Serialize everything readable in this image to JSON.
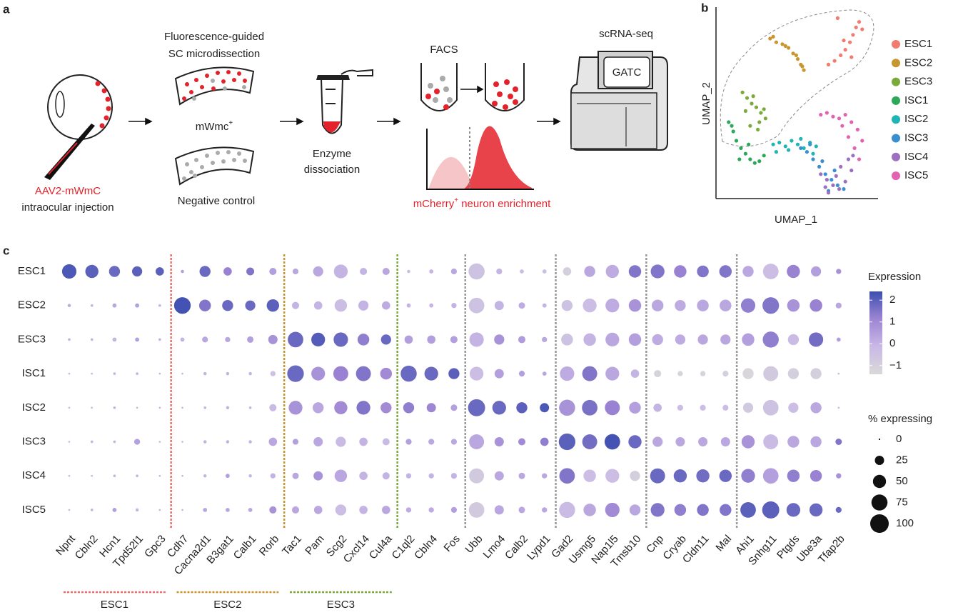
{
  "panel_labels": [
    "a",
    "b",
    "c"
  ],
  "diagram": {
    "injection": {
      "vector": "AAV2-mWmC",
      "route": "intraocular injection"
    },
    "microdissection": [
      "Fluorescence-guided",
      "SC microdissection"
    ],
    "sc_positive": {
      "label": "mWmc",
      "sup": "+"
    },
    "negative": "Negative control",
    "enzyme": [
      "Enzyme",
      "dissociation"
    ],
    "facs": "FACS",
    "enrichment": {
      "pre": "mCherry",
      "sup": "+",
      "post": " neuron enrichment"
    },
    "sequencing": "scRNA-seq",
    "machine": "GATC"
  },
  "chart_data": [
    {
      "type": "scatter",
      "xlabel": "UMAP_1",
      "ylabel": "UMAP_2",
      "xlim": [
        0,
        10
      ],
      "ylim": [
        0,
        10
      ],
      "legend": "right",
      "series": [
        {
          "name": "ESC1",
          "color": "#f07b6e",
          "x": [
            7.0,
            7.4,
            7.8,
            8.1,
            8.4,
            8.6,
            8.8,
            9.0,
            9.2,
            8.5,
            8.0,
            7.6
          ],
          "values": [
            7.1,
            7.3,
            7.6,
            7.9,
            8.3,
            8.7,
            9.1,
            9.4,
            9.0,
            7.5,
            8.4,
            9.6
          ]
        },
        {
          "name": "ESC2",
          "color": "#c8962f",
          "x": [
            3.2,
            3.6,
            4.0,
            4.4,
            4.7,
            5.0,
            5.2,
            5.4,
            3.4,
            4.2,
            4.9,
            5.3
          ],
          "values": [
            8.5,
            8.3,
            8.2,
            8.0,
            7.7,
            7.4,
            7.1,
            6.8,
            8.6,
            8.1,
            7.6,
            7.0
          ]
        },
        {
          "name": "ESC3",
          "color": "#7aab3a",
          "x": [
            1.4,
            1.7,
            2.0,
            2.3,
            2.6,
            2.9,
            1.6,
            2.1,
            2.5,
            2.8,
            1.9,
            2.4
          ],
          "values": [
            5.6,
            5.3,
            5.0,
            4.8,
            4.5,
            4.2,
            4.6,
            5.4,
            4.0,
            4.7,
            3.8,
            3.6
          ]
        },
        {
          "name": "ISC1",
          "color": "#2ca85a",
          "x": [
            0.5,
            0.8,
            1.0,
            1.3,
            1.6,
            1.9,
            2.2,
            2.5,
            2.8,
            0.7,
            1.2,
            1.8
          ],
          "values": [
            4.0,
            3.5,
            3.0,
            2.6,
            2.3,
            2.0,
            1.8,
            1.9,
            2.2,
            3.8,
            2.0,
            2.8
          ]
        },
        {
          "name": "ISC2",
          "color": "#1fb5b5",
          "x": [
            3.4,
            3.8,
            4.2,
            4.6,
            5.0,
            5.4,
            5.8,
            6.2,
            3.6,
            4.4,
            5.2,
            6.0
          ],
          "values": [
            2.8,
            2.9,
            2.7,
            3.0,
            2.8,
            2.6,
            2.9,
            2.7,
            2.4,
            2.5,
            3.1,
            2.3
          ]
        },
        {
          "name": "ISC3",
          "color": "#3a8fd0",
          "x": [
            5.2,
            5.6,
            6.0,
            6.4,
            6.8,
            7.2,
            7.6,
            8.0,
            5.8,
            6.6,
            7.4,
            7.0
          ],
          "values": [
            2.6,
            2.4,
            2.0,
            1.6,
            1.2,
            0.9,
            0.6,
            0.4,
            2.8,
            1.9,
            1.4,
            0.3
          ]
        },
        {
          "name": "ISC4",
          "color": "#9c6fc0",
          "x": [
            6.5,
            6.9,
            7.3,
            7.7,
            8.1,
            8.5,
            7.0,
            7.8,
            8.3,
            7.5,
            6.8,
            8.6
          ],
          "values": [
            1.2,
            0.9,
            0.6,
            0.4,
            0.8,
            1.4,
            0.2,
            1.6,
            2.0,
            1.1,
            0.5,
            2.2
          ]
        },
        {
          "name": "ISC5",
          "color": "#e064b0",
          "x": [
            6.5,
            6.9,
            7.3,
            7.7,
            8.1,
            8.5,
            8.9,
            9.2,
            8.7,
            8.3,
            7.9,
            9.0
          ],
          "values": [
            4.4,
            4.5,
            4.3,
            4.2,
            4.4,
            4.0,
            3.6,
            3.0,
            2.6,
            3.2,
            3.8,
            2.0
          ]
        }
      ]
    },
    {
      "type": "dot",
      "rows": [
        "ESC1",
        "ESC2",
        "ESC3",
        "ISC1",
        "ISC2",
        "ISC3",
        "ISC4",
        "ISC5"
      ],
      "gene_blocks": [
        {
          "genes": [
            "Npnt",
            "Cbln2",
            "Hcn1",
            "Tpd52l1",
            "Gpc3"
          ],
          "label": "ESC1",
          "color": "#e8706a"
        },
        {
          "genes": [
            "Cdh7",
            "Cacna2d1",
            "B3gat1",
            "Calb1",
            "Rorb"
          ],
          "label": "ESC2",
          "color": "#c8962f"
        },
        {
          "genes": [
            "Tac1",
            "Pam",
            "Scg2",
            "Cxcl14",
            "Cul4a"
          ],
          "label": "ESC3",
          "color": "#7aab3a"
        },
        {
          "genes": [
            "C1ql2",
            "Cbln4",
            "Fos"
          ],
          "color": "#9a9a9a"
        },
        {
          "genes": [
            "Ubb",
            "Lmo4",
            "Calb2",
            "Lypd1"
          ],
          "color": "#9a9a9a"
        },
        {
          "genes": [
            "Gad2",
            "Usmg5",
            "Nap1l5",
            "Tmsb10"
          ],
          "color": "#9a9a9a"
        },
        {
          "genes": [
            "Cnp",
            "Cryab",
            "Cldn11",
            "Mal"
          ],
          "color": "#9a9a9a"
        },
        {
          "genes": [
            "Ahi1",
            "Snhg11",
            "Ptgds",
            "Ube3a",
            "Tfap2b"
          ]
        }
      ],
      "values": [
        [
          2.2,
          2,
          1.8,
          2,
          2,
          0.5,
          1.8,
          1.2,
          1.5,
          0.5,
          0.3,
          0.3,
          0,
          0,
          0.3,
          -0.2,
          0,
          0.3,
          -0.5,
          0,
          -0.3,
          -0.3,
          -1,
          0.3,
          0.2,
          1.5,
          1.5,
          1.2,
          1.5,
          1.5,
          0.3,
          -0.3,
          1.2,
          0.5,
          0.8
        ],
        [
          0.2,
          0,
          0.3,
          0.5,
          0,
          2.3,
          1.5,
          1.8,
          1.8,
          2,
          0,
          0,
          -0.3,
          0,
          0.2,
          0,
          0,
          0,
          -0.5,
          0,
          0.2,
          0,
          -0.5,
          -0.3,
          0.2,
          0.8,
          0.3,
          0.2,
          0.3,
          0.3,
          1.3,
          1.5,
          0.8,
          1.2,
          0.3
        ],
        [
          0,
          0,
          0,
          0.5,
          0,
          0,
          0.3,
          0.3,
          0.5,
          0.8,
          1.8,
          2.1,
          1.8,
          1.3,
          1.8,
          0.5,
          0.5,
          0.5,
          0,
          0.8,
          0.6,
          0.3,
          -0.5,
          0,
          0.3,
          0.5,
          0.2,
          0.2,
          0.3,
          0.3,
          0.5,
          1.3,
          -0.2,
          1.7,
          0.5
        ],
        [
          0,
          0,
          0,
          0,
          0,
          0,
          0,
          0,
          0,
          -0.5,
          1.8,
          0.8,
          1.2,
          1.5,
          1,
          1.8,
          1.8,
          2,
          -0.3,
          0.5,
          0.5,
          0.3,
          0.2,
          1.5,
          0.3,
          0,
          -1.2,
          -1.2,
          -1.2,
          -1,
          -1.3,
          -0.8,
          -1,
          -1,
          0
        ],
        [
          0,
          0,
          0,
          0,
          0,
          0,
          0,
          0,
          0,
          -0.2,
          0.8,
          0.3,
          1,
          1.5,
          1,
          1.3,
          1.1,
          0.5,
          1.8,
          1.8,
          2,
          2.2,
          0.8,
          1.6,
          1.2,
          0.5,
          0,
          -0.3,
          -0.3,
          -0.3,
          -0.8,
          -0.5,
          -0.3,
          0.3,
          0
        ],
        [
          0,
          0,
          0,
          0.5,
          0,
          0,
          0,
          0,
          0,
          0.3,
          0.5,
          0.3,
          -0.2,
          0,
          -0.2,
          0.5,
          0.3,
          0.3,
          0.3,
          0.8,
          1,
          1.3,
          2,
          1.7,
          2.3,
          1.8,
          0.3,
          0.3,
          0.3,
          0.3,
          0.8,
          -0.2,
          0.3,
          0.3,
          1.5
        ],
        [
          0,
          0,
          0,
          0,
          0,
          0,
          0,
          0.5,
          0,
          0,
          0.3,
          0.8,
          0.3,
          0,
          0,
          0,
          0,
          0,
          -0.8,
          0.3,
          0.3,
          0.3,
          1.5,
          -0.3,
          -0.3,
          -1,
          1.8,
          1.8,
          1.7,
          1.8,
          1.3,
          0.5,
          1.3,
          1.2,
          0.8
        ],
        [
          0,
          0,
          0.5,
          0,
          0,
          0,
          0.3,
          0.3,
          0.3,
          0.8,
          0.3,
          0.3,
          -0.3,
          0,
          0.3,
          0.2,
          0.2,
          0.5,
          -0.8,
          0.3,
          0.3,
          0.3,
          -0.2,
          0.3,
          1,
          0.3,
          1.5,
          1.3,
          1.5,
          1.5,
          2,
          2,
          1.8,
          1.8,
          1.8
        ]
      ],
      "sizes": [
        [
          60,
          50,
          35,
          30,
          20,
          3,
          35,
          20,
          18,
          15,
          10,
          30,
          55,
          15,
          15,
          3,
          5,
          10,
          75,
          10,
          5,
          5,
          20,
          35,
          50,
          45,
          55,
          45,
          40,
          45,
          35,
          70,
          50,
          30,
          8
        ],
        [
          3,
          2,
          5,
          5,
          2,
          80,
          40,
          35,
          30,
          45,
          15,
          20,
          45,
          30,
          20,
          5,
          5,
          8,
          70,
          25,
          12,
          5,
          35,
          55,
          55,
          45,
          40,
          35,
          40,
          40,
          60,
          80,
          45,
          45,
          10
        ],
        [
          2,
          2,
          5,
          5,
          2,
          5,
          10,
          8,
          12,
          25,
          70,
          55,
          60,
          40,
          30,
          20,
          20,
          15,
          60,
          30,
          15,
          8,
          40,
          45,
          55,
          45,
          35,
          30,
          30,
          30,
          45,
          75,
          35,
          60,
          5
        ],
        [
          1,
          1,
          2,
          2,
          1,
          1,
          3,
          3,
          3,
          8,
          80,
          55,
          65,
          65,
          40,
          75,
          55,
          35,
          55,
          25,
          10,
          5,
          60,
          65,
          55,
          20,
          15,
          8,
          8,
          10,
          35,
          65,
          35,
          35,
          1
        ],
        [
          1,
          1,
          2,
          1,
          1,
          1,
          2,
          3,
          2,
          15,
          55,
          35,
          50,
          55,
          35,
          35,
          25,
          12,
          85,
          55,
          35,
          25,
          75,
          70,
          65,
          40,
          20,
          10,
          10,
          10,
          30,
          70,
          30,
          35,
          1
        ],
        [
          1,
          2,
          2,
          10,
          1,
          1,
          3,
          3,
          3,
          20,
          10,
          25,
          30,
          20,
          15,
          10,
          10,
          10,
          65,
          25,
          15,
          20,
          80,
          65,
          70,
          50,
          30,
          25,
          25,
          25,
          50,
          65,
          40,
          35,
          12
        ],
        [
          1,
          1,
          2,
          2,
          1,
          1,
          3,
          5,
          3,
          8,
          12,
          25,
          45,
          20,
          15,
          8,
          8,
          10,
          65,
          25,
          12,
          8,
          70,
          45,
          55,
          30,
          65,
          50,
          50,
          45,
          55,
          70,
          45,
          40,
          8
        ],
        [
          1,
          2,
          5,
          3,
          1,
          1,
          5,
          5,
          5,
          15,
          15,
          20,
          35,
          20,
          20,
          8,
          8,
          10,
          70,
          25,
          12,
          8,
          75,
          45,
          60,
          35,
          55,
          40,
          40,
          40,
          70,
          85,
          55,
          50,
          10
        ]
      ],
      "color_title": "Expression",
      "clim": [
        -1.4,
        2.4
      ],
      "colormap": [
        "#d9d9d9",
        "#c9b9e6",
        "#9d85d3",
        "#3c4fb0"
      ],
      "color_ticks": [
        {
          "value": -1,
          "label": "−1"
        },
        0,
        1,
        2
      ],
      "size_title": "% expressing",
      "size_ticks": [
        0,
        25,
        50,
        75,
        100
      ]
    }
  ]
}
